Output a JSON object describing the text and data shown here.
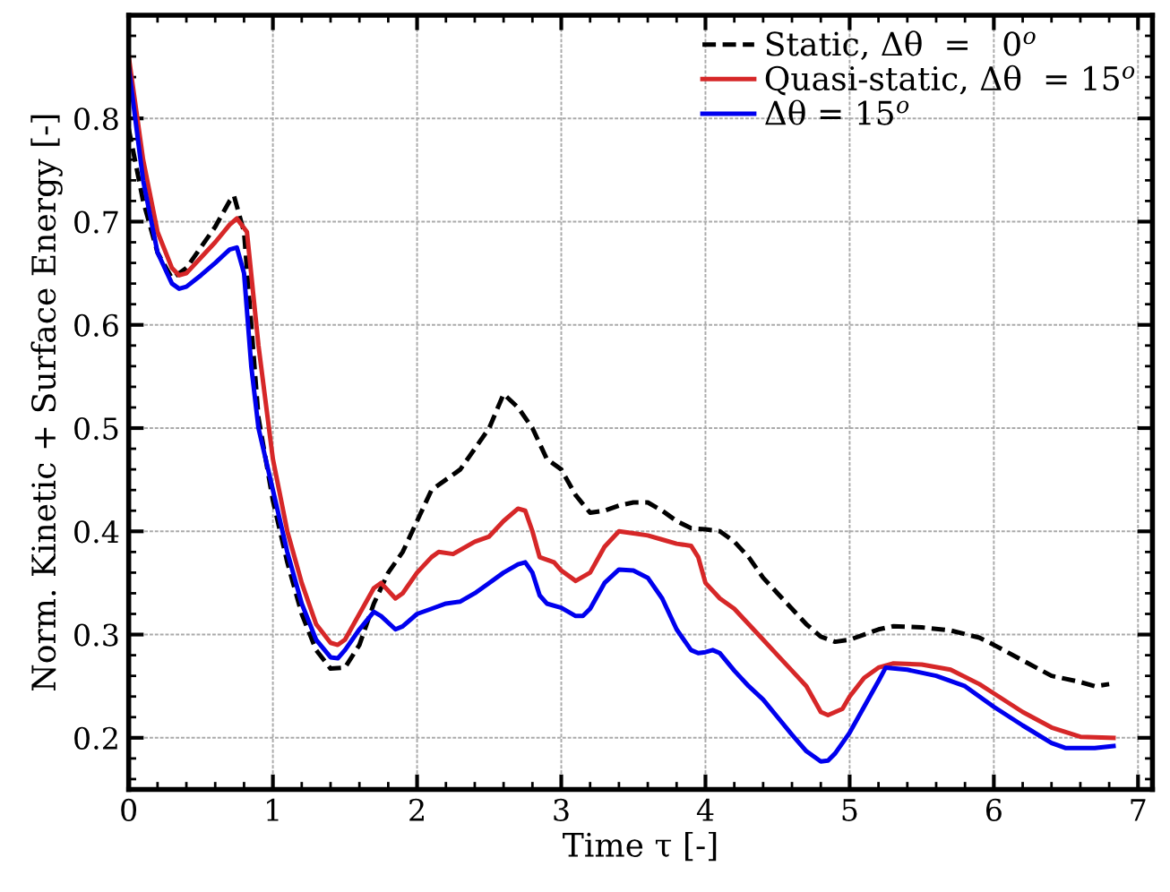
{
  "chart_data": {
    "type": "line",
    "xlabel": "Time τ [-]",
    "ylabel": "Norm. Kinetic + Surface Energy [-]",
    "xlim": [
      0,
      7.1
    ],
    "xticks": [
      0,
      1,
      2,
      3,
      4,
      5,
      6,
      7
    ],
    "ylim": [
      0.15,
      0.9
    ],
    "yticks": [
      0.2,
      0.3,
      0.4,
      0.5,
      0.6,
      0.7,
      0.8
    ],
    "grid": true,
    "legend": "top right",
    "series": [
      {
        "name": "Static, Δθ  =   0$^{o}$",
        "color": "#000000",
        "line_style": "dashed",
        "x": [
          0,
          0.1,
          0.2,
          0.3,
          0.4,
          0.5,
          0.6,
          0.7,
          0.73,
          0.8,
          0.85,
          0.9,
          1.0,
          1.1,
          1.2,
          1.3,
          1.4,
          1.5,
          1.6,
          1.7,
          1.8,
          1.9,
          2.0,
          2.1,
          2.2,
          2.3,
          2.4,
          2.5,
          2.6,
          2.7,
          2.8,
          2.9,
          3.0,
          3.1,
          3.2,
          3.3,
          3.4,
          3.5,
          3.6,
          3.7,
          3.8,
          3.9,
          4.0,
          4.1,
          4.2,
          4.3,
          4.4,
          4.5,
          4.6,
          4.7,
          4.8,
          4.9,
          5.0,
          5.1,
          5.2,
          5.3,
          5.5,
          5.7,
          5.9,
          6.0,
          6.2,
          6.4,
          6.6,
          6.7,
          6.8
        ],
        "values": [
          0.79,
          0.72,
          0.67,
          0.645,
          0.655,
          0.675,
          0.695,
          0.72,
          0.725,
          0.69,
          0.6,
          0.51,
          0.43,
          0.37,
          0.32,
          0.285,
          0.267,
          0.268,
          0.29,
          0.33,
          0.36,
          0.38,
          0.41,
          0.44,
          0.45,
          0.46,
          0.48,
          0.5,
          0.533,
          0.52,
          0.5,
          0.47,
          0.46,
          0.435,
          0.418,
          0.42,
          0.425,
          0.428,
          0.428,
          0.42,
          0.41,
          0.403,
          0.402,
          0.4,
          0.39,
          0.375,
          0.355,
          0.34,
          0.325,
          0.31,
          0.298,
          0.293,
          0.295,
          0.3,
          0.305,
          0.308,
          0.307,
          0.304,
          0.297,
          0.29,
          0.275,
          0.26,
          0.254,
          0.25,
          0.252
        ]
      },
      {
        "name": "Quasi-static, Δθ  = 15$^{o}$",
        "color": "#d62728",
        "line_style": "solid",
        "x": [
          0,
          0.1,
          0.2,
          0.3,
          0.35,
          0.4,
          0.5,
          0.6,
          0.7,
          0.75,
          0.82,
          0.9,
          1.0,
          1.1,
          1.2,
          1.3,
          1.4,
          1.45,
          1.5,
          1.6,
          1.7,
          1.75,
          1.85,
          1.9,
          2.0,
          2.1,
          2.15,
          2.25,
          2.4,
          2.5,
          2.6,
          2.7,
          2.75,
          2.8,
          2.85,
          2.95,
          3.0,
          3.1,
          3.2,
          3.3,
          3.4,
          3.5,
          3.6,
          3.7,
          3.8,
          3.9,
          3.95,
          4.0,
          4.1,
          4.2,
          4.3,
          4.4,
          4.5,
          4.6,
          4.7,
          4.8,
          4.85,
          4.95,
          5.0,
          5.1,
          5.2,
          5.3,
          5.5,
          5.7,
          5.9,
          6.0,
          6.2,
          6.4,
          6.6,
          6.83
        ],
        "values": [
          0.86,
          0.76,
          0.69,
          0.655,
          0.648,
          0.65,
          0.665,
          0.68,
          0.697,
          0.703,
          0.69,
          0.58,
          0.47,
          0.4,
          0.35,
          0.31,
          0.292,
          0.29,
          0.295,
          0.32,
          0.345,
          0.35,
          0.335,
          0.34,
          0.36,
          0.375,
          0.38,
          0.378,
          0.39,
          0.395,
          0.41,
          0.422,
          0.42,
          0.4,
          0.375,
          0.37,
          0.362,
          0.352,
          0.36,
          0.385,
          0.4,
          0.398,
          0.396,
          0.392,
          0.388,
          0.386,
          0.375,
          0.35,
          0.335,
          0.325,
          0.31,
          0.295,
          0.28,
          0.265,
          0.25,
          0.225,
          0.222,
          0.228,
          0.24,
          0.258,
          0.268,
          0.272,
          0.271,
          0.266,
          0.252,
          0.243,
          0.225,
          0.21,
          0.201,
          0.2
        ]
      },
      {
        "name": "Δθ = 15$^{o}$",
        "color": "#0000ee",
        "line_style": "solid",
        "x": [
          0,
          0.1,
          0.2,
          0.3,
          0.35,
          0.4,
          0.5,
          0.6,
          0.7,
          0.75,
          0.8,
          0.85,
          0.9,
          1.0,
          1.1,
          1.2,
          1.3,
          1.4,
          1.45,
          1.5,
          1.6,
          1.7,
          1.75,
          1.85,
          1.9,
          2.0,
          2.1,
          2.2,
          2.3,
          2.4,
          2.5,
          2.6,
          2.7,
          2.75,
          2.8,
          2.85,
          2.9,
          3.0,
          3.1,
          3.15,
          3.2,
          3.3,
          3.4,
          3.5,
          3.6,
          3.7,
          3.8,
          3.9,
          3.95,
          4.0,
          4.05,
          4.1,
          4.2,
          4.3,
          4.4,
          4.5,
          4.6,
          4.7,
          4.8,
          4.85,
          4.9,
          5.0,
          5.1,
          5.2,
          5.25,
          5.4,
          5.6,
          5.8,
          6.0,
          6.2,
          6.4,
          6.5,
          6.7,
          6.83
        ],
        "values": [
          0.85,
          0.74,
          0.67,
          0.64,
          0.635,
          0.637,
          0.648,
          0.66,
          0.673,
          0.675,
          0.65,
          0.56,
          0.5,
          0.44,
          0.38,
          0.33,
          0.295,
          0.278,
          0.277,
          0.285,
          0.305,
          0.322,
          0.318,
          0.305,
          0.308,
          0.32,
          0.325,
          0.33,
          0.332,
          0.34,
          0.35,
          0.36,
          0.368,
          0.37,
          0.36,
          0.338,
          0.33,
          0.326,
          0.318,
          0.318,
          0.325,
          0.35,
          0.363,
          0.362,
          0.355,
          0.335,
          0.305,
          0.285,
          0.282,
          0.283,
          0.285,
          0.282,
          0.265,
          0.25,
          0.237,
          0.22,
          0.203,
          0.187,
          0.177,
          0.178,
          0.185,
          0.205,
          0.23,
          0.255,
          0.268,
          0.266,
          0.26,
          0.25,
          0.23,
          0.212,
          0.195,
          0.19,
          0.19,
          0.192
        ]
      }
    ]
  }
}
